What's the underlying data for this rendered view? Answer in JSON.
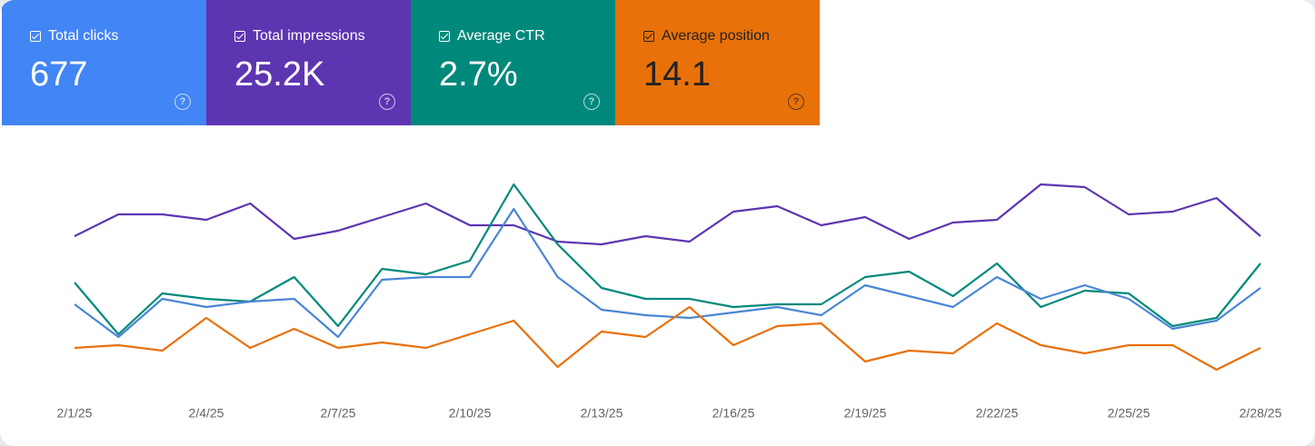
{
  "cards": [
    {
      "label": "Total clicks",
      "value": "677",
      "color": "#4285f4",
      "text_color": "#ffffff"
    },
    {
      "label": "Total impressions",
      "value": "25.2K",
      "color": "#5e35b1",
      "text_color": "#ffffff"
    },
    {
      "label": "Average CTR",
      "value": "2.7%",
      "color": "#00897b",
      "text_color": "#ffffff"
    },
    {
      "label": "Average position",
      "value": "14.1",
      "color": "#e8710a",
      "text_color": "#202124"
    }
  ],
  "chart_data": {
    "type": "line",
    "categories": [
      "2/1/25",
      null,
      null,
      "2/4/25",
      null,
      null,
      "2/7/25",
      null,
      null,
      "2/10/25",
      null,
      null,
      "2/13/25",
      null,
      null,
      "2/16/25",
      null,
      null,
      "2/19/25",
      null,
      null,
      "2/22/25",
      null,
      null,
      "2/25/25",
      null,
      null,
      "2/28/25"
    ],
    "ylim": [
      0,
      100
    ],
    "series": [
      {
        "color": "#5e35b1",
        "values": [
          60,
          68,
          68,
          66,
          72,
          59,
          62,
          67,
          72,
          64,
          64,
          58,
          57,
          60,
          58,
          69,
          71,
          64,
          67,
          59,
          65,
          66,
          79,
          78,
          68,
          69,
          74,
          60
        ]
      },
      {
        "color": "#00897b",
        "values": [
          43,
          24,
          39,
          37,
          36,
          45,
          27,
          48,
          46,
          51,
          79,
          57,
          41,
          37,
          37,
          34,
          35,
          35,
          45,
          47,
          38,
          50,
          34,
          40,
          39,
          27,
          30,
          50
        ]
      },
      {
        "color": "#4a86d4",
        "values": [
          35,
          23,
          37,
          34,
          36,
          37,
          23,
          44,
          45,
          45,
          70,
          45,
          33,
          31,
          30,
          32,
          34,
          31,
          42,
          38,
          34,
          45,
          37,
          42,
          37,
          26,
          29,
          41
        ]
      },
      {
        "color": "#e8710a",
        "values": [
          19,
          20,
          18,
          30,
          19,
          26,
          19,
          21,
          19,
          24,
          29,
          12,
          25,
          23,
          34,
          20,
          27,
          28,
          14,
          18,
          17,
          28,
          20,
          17,
          20,
          20,
          11,
          19
        ]
      }
    ]
  }
}
